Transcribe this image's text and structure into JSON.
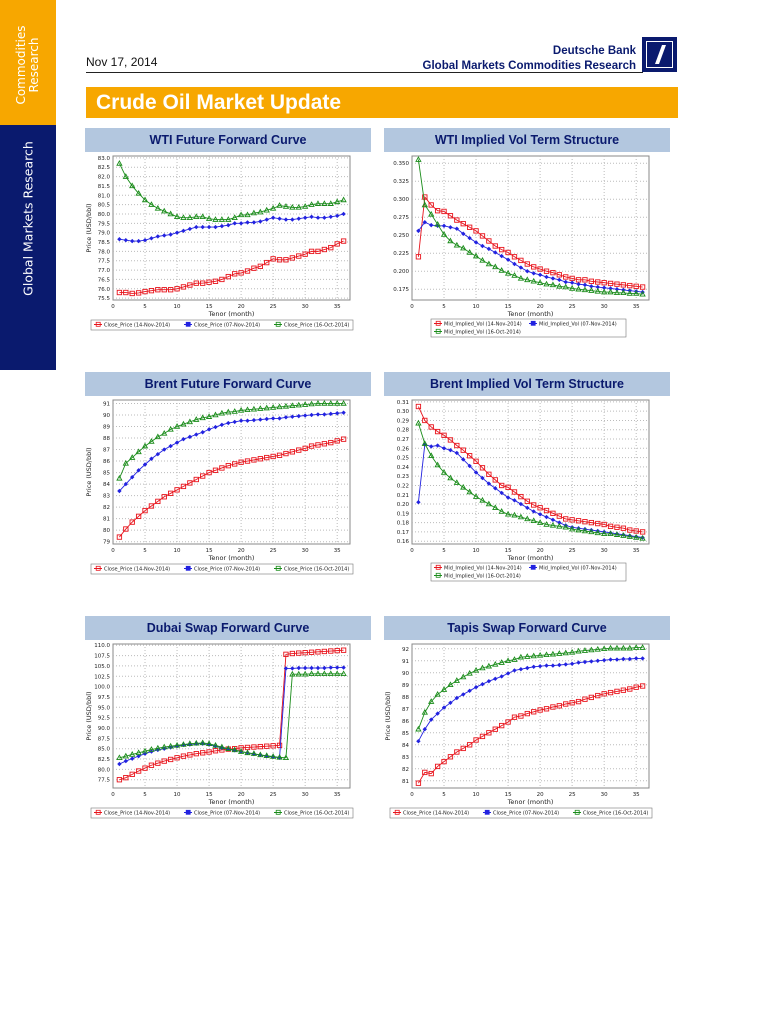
{
  "sidebar": {
    "top_label_1": "Commodities",
    "top_label_2": "Research",
    "bottom_label": "Global Markets Research"
  },
  "header": {
    "date": "Nov 17, 2014",
    "brand_line1": "Deutsche Bank",
    "brand_line2": "Global Markets Commodities Research",
    "logo": "deutsche-bank-slash-logo"
  },
  "page_title": "Crude Oil Market Update",
  "colors": {
    "orange": "#f7a700",
    "navy": "#0a1a6e",
    "title_bg": "#b3c7df",
    "red": "#e8141c",
    "blue": "#2222e0",
    "green": "#1a8c1a"
  },
  "chart_data": [
    {
      "title": "WTI Future Forward Curve",
      "type": "line",
      "xlabel": "Tenor (month)",
      "ylabel": "Price (USD/bbl)",
      "xlim": [
        0,
        37
      ],
      "ylim": [
        75.4,
        83.1
      ],
      "xticks": [
        0,
        5,
        10,
        15,
        20,
        25,
        30,
        35
      ],
      "yticks": [
        75.5,
        76.0,
        76.5,
        77.0,
        77.5,
        78.0,
        78.5,
        79.0,
        79.5,
        80.0,
        80.5,
        81.0,
        81.5,
        82.0,
        82.5,
        83.0
      ],
      "ydec": 1,
      "grid": true,
      "legend_placement": "bottom",
      "series": [
        {
          "name": "Close_Price (14-Nov-2014)",
          "color": "#e8141c",
          "marker": "square",
          "values": [
            75.8,
            75.8,
            75.75,
            75.78,
            75.85,
            75.9,
            75.95,
            75.95,
            75.95,
            76.0,
            76.1,
            76.2,
            76.3,
            76.3,
            76.35,
            76.4,
            76.5,
            76.65,
            76.8,
            76.85,
            76.95,
            77.1,
            77.2,
            77.4,
            77.6,
            77.55,
            77.55,
            77.65,
            77.75,
            77.85,
            78.0,
            78.0,
            78.1,
            78.2,
            78.4,
            78.55
          ]
        },
        {
          "name": "Close_Price (07-Nov-2014)",
          "color": "#2222e0",
          "marker": "diamond",
          "values": [
            78.65,
            78.6,
            78.55,
            78.55,
            78.6,
            78.7,
            78.8,
            78.85,
            78.9,
            79.0,
            79.1,
            79.2,
            79.3,
            79.3,
            79.3,
            79.3,
            79.35,
            79.4,
            79.5,
            79.5,
            79.55,
            79.55,
            79.6,
            79.7,
            79.8,
            79.75,
            79.7,
            79.7,
            79.75,
            79.8,
            79.85,
            79.8,
            79.8,
            79.85,
            79.9,
            80.0
          ]
        },
        {
          "name": "Close_Price (16-Oct-2014)",
          "color": "#1a8c1a",
          "marker": "triangle",
          "values": [
            82.7,
            82.0,
            81.5,
            81.1,
            80.75,
            80.5,
            80.3,
            80.15,
            80.0,
            79.85,
            79.8,
            79.8,
            79.85,
            79.85,
            79.75,
            79.7,
            79.7,
            79.7,
            79.8,
            79.95,
            79.95,
            80.05,
            80.1,
            80.2,
            80.3,
            80.45,
            80.4,
            80.35,
            80.35,
            80.4,
            80.5,
            80.55,
            80.55,
            80.55,
            80.65,
            80.75
          ]
        }
      ]
    },
    {
      "title": "WTI Implied Vol Term Structure",
      "type": "line",
      "xlabel": "Tenor (month)",
      "ylabel": "",
      "xlim": [
        0,
        37
      ],
      "ylim": [
        0.16,
        0.36
      ],
      "xticks": [
        0,
        5,
        10,
        15,
        20,
        25,
        30,
        35
      ],
      "yticks": [
        0.175,
        0.2,
        0.225,
        0.25,
        0.275,
        0.3,
        0.325,
        0.35
      ],
      "ydec": 3,
      "grid": true,
      "legend_placement": "bottom",
      "series": [
        {
          "name": "Mid_Implied_Vol (14-Nov-2014)",
          "color": "#e8141c",
          "marker": "square",
          "values": [
            0.22,
            0.303,
            0.292,
            0.284,
            0.283,
            0.277,
            0.271,
            0.266,
            0.261,
            0.256,
            0.249,
            0.242,
            0.235,
            0.23,
            0.226,
            0.22,
            0.215,
            0.21,
            0.206,
            0.203,
            0.2,
            0.198,
            0.195,
            0.192,
            0.19,
            0.188,
            0.188,
            0.186,
            0.185,
            0.184,
            0.183,
            0.182,
            0.181,
            0.18,
            0.179,
            0.178
          ]
        },
        {
          "name": "Mid_Implied_Vol (07-Nov-2014)",
          "color": "#2222e0",
          "marker": "diamond",
          "values": [
            0.256,
            0.268,
            0.264,
            0.263,
            0.263,
            0.261,
            0.259,
            0.252,
            0.246,
            0.24,
            0.235,
            0.231,
            0.226,
            0.221,
            0.216,
            0.21,
            0.205,
            0.2,
            0.197,
            0.195,
            0.192,
            0.19,
            0.188,
            0.185,
            0.184,
            0.182,
            0.181,
            0.179,
            0.178,
            0.177,
            0.176,
            0.175,
            0.174,
            0.173,
            0.172,
            0.171
          ]
        },
        {
          "name": "Mid_Implied_Vol (16-Oct-2014)",
          "color": "#1a8c1a",
          "marker": "triangle",
          "values": [
            0.355,
            0.292,
            0.279,
            0.265,
            0.251,
            0.242,
            0.236,
            0.232,
            0.226,
            0.221,
            0.215,
            0.21,
            0.206,
            0.201,
            0.197,
            0.194,
            0.19,
            0.188,
            0.186,
            0.184,
            0.182,
            0.181,
            0.179,
            0.178,
            0.176,
            0.175,
            0.174,
            0.173,
            0.172,
            0.171,
            0.171,
            0.17,
            0.17,
            0.169,
            0.169,
            0.168
          ]
        }
      ]
    },
    {
      "title": "Brent Future Forward Curve",
      "type": "line",
      "xlabel": "Tenor (month)",
      "ylabel": "Price (USD/bbl)",
      "xlim": [
        0,
        37
      ],
      "ylim": [
        78.8,
        91.3
      ],
      "xticks": [
        0,
        5,
        10,
        15,
        20,
        25,
        30,
        35
      ],
      "yticks": [
        79,
        80,
        81,
        82,
        83,
        84,
        85,
        86,
        87,
        88,
        89,
        90,
        91
      ],
      "ydec": 0,
      "grid": true,
      "legend_placement": "bottom",
      "series": [
        {
          "name": "Close_Price (14-Nov-2014)",
          "color": "#e8141c",
          "marker": "square",
          "values": [
            79.4,
            80.1,
            80.7,
            81.2,
            81.7,
            82.1,
            82.5,
            82.9,
            83.2,
            83.5,
            83.8,
            84.1,
            84.4,
            84.7,
            85.0,
            85.2,
            85.4,
            85.6,
            85.75,
            85.9,
            86.0,
            86.1,
            86.2,
            86.3,
            86.4,
            86.5,
            86.65,
            86.8,
            86.95,
            87.1,
            87.3,
            87.4,
            87.5,
            87.6,
            87.75,
            87.9
          ]
        },
        {
          "name": "Close_Price (07-Nov-2014)",
          "color": "#2222e0",
          "marker": "diamond",
          "values": [
            83.4,
            84.0,
            84.6,
            85.2,
            85.7,
            86.2,
            86.6,
            87.0,
            87.3,
            87.6,
            87.9,
            88.1,
            88.3,
            88.5,
            88.75,
            88.95,
            89.15,
            89.3,
            89.4,
            89.5,
            89.5,
            89.55,
            89.6,
            89.65,
            89.7,
            89.7,
            89.8,
            89.85,
            89.9,
            89.95,
            90.0,
            90.05,
            90.05,
            90.1,
            90.15,
            90.2
          ]
        },
        {
          "name": "Close_Price (16-Oct-2014)",
          "color": "#1a8c1a",
          "marker": "triangle",
          "values": [
            84.5,
            85.8,
            86.3,
            86.8,
            87.3,
            87.7,
            88.1,
            88.4,
            88.75,
            89.0,
            89.2,
            89.4,
            89.6,
            89.75,
            89.85,
            90.0,
            90.15,
            90.25,
            90.3,
            90.4,
            90.45,
            90.5,
            90.55,
            90.6,
            90.65,
            90.7,
            90.75,
            90.8,
            90.85,
            90.9,
            90.95,
            91.0,
            91.0,
            91.0,
            91.0,
            91.0
          ]
        }
      ]
    },
    {
      "title": "Brent Implied Vol Term Structure",
      "type": "line",
      "xlabel": "Tenor (month)",
      "ylabel": "",
      "xlim": [
        0,
        37
      ],
      "ylim": [
        0.157,
        0.312
      ],
      "xticks": [
        0,
        5,
        10,
        15,
        20,
        25,
        30,
        35
      ],
      "yticks": [
        0.16,
        0.17,
        0.18,
        0.19,
        0.2,
        0.21,
        0.22,
        0.23,
        0.24,
        0.25,
        0.26,
        0.27,
        0.28,
        0.29,
        0.3,
        0.31
      ],
      "ydec": 2,
      "grid": true,
      "legend_placement": "bottom",
      "series": [
        {
          "name": "Mid_Implied_Vol (14-Nov-2014)",
          "color": "#e8141c",
          "marker": "square",
          "values": [
            0.305,
            0.29,
            0.283,
            0.278,
            0.274,
            0.269,
            0.263,
            0.258,
            0.252,
            0.246,
            0.239,
            0.232,
            0.226,
            0.22,
            0.218,
            0.213,
            0.208,
            0.203,
            0.199,
            0.196,
            0.193,
            0.19,
            0.187,
            0.184,
            0.183,
            0.182,
            0.181,
            0.18,
            0.179,
            0.178,
            0.176,
            0.175,
            0.174,
            0.172,
            0.171,
            0.17
          ]
        },
        {
          "name": "Mid_Implied_Vol (07-Nov-2014)",
          "color": "#2222e0",
          "marker": "diamond",
          "values": [
            0.202,
            0.264,
            0.262,
            0.263,
            0.26,
            0.258,
            0.255,
            0.248,
            0.241,
            0.234,
            0.228,
            0.222,
            0.217,
            0.212,
            0.207,
            0.204,
            0.2,
            0.196,
            0.192,
            0.189,
            0.186,
            0.183,
            0.18,
            0.177,
            0.175,
            0.174,
            0.173,
            0.172,
            0.171,
            0.17,
            0.169,
            0.168,
            0.167,
            0.166,
            0.165,
            0.164
          ]
        },
        {
          "name": "Mid_Implied_Vol (16-Oct-2014)",
          "color": "#1a8c1a",
          "marker": "triangle",
          "values": [
            0.287,
            0.265,
            0.252,
            0.242,
            0.234,
            0.228,
            0.223,
            0.218,
            0.213,
            0.208,
            0.204,
            0.2,
            0.196,
            0.192,
            0.189,
            0.188,
            0.186,
            0.184,
            0.182,
            0.18,
            0.178,
            0.177,
            0.176,
            0.175,
            0.173,
            0.172,
            0.171,
            0.17,
            0.169,
            0.168,
            0.168,
            0.167,
            0.166,
            0.165,
            0.164,
            0.163
          ]
        }
      ]
    },
    {
      "title": "Dubai Swap Forward Curve",
      "type": "line",
      "xlabel": "Tenor (month)",
      "ylabel": "Price (USD/bbl)",
      "xlim": [
        0,
        37
      ],
      "ylim": [
        75.5,
        110.3
      ],
      "xticks": [
        0,
        5,
        10,
        15,
        20,
        25,
        30,
        35
      ],
      "yticks": [
        77.5,
        80,
        82.5,
        85,
        87.5,
        90,
        92.5,
        95,
        97.5,
        100,
        102.5,
        105,
        107.5,
        110
      ],
      "ydec": 1,
      "grid": true,
      "legend_placement": "bottom",
      "series": [
        {
          "name": "Close_Price (14-Nov-2014)",
          "color": "#e8141c",
          "marker": "square",
          "values": [
            77.5,
            78.0,
            78.8,
            79.6,
            80.3,
            81.0,
            81.5,
            82.0,
            82.4,
            82.8,
            83.2,
            83.5,
            83.8,
            84.0,
            84.2,
            84.5,
            84.7,
            84.9,
            85.0,
            85.2,
            85.3,
            85.4,
            85.5,
            85.6,
            85.7,
            85.8,
            107.8,
            108.0,
            108.1,
            108.2,
            108.3,
            108.4,
            108.5,
            108.6,
            108.7,
            108.8
          ]
        },
        {
          "name": "Close_Price (07-Nov-2014)",
          "color": "#2222e0",
          "marker": "diamond",
          "values": [
            81.3,
            82.0,
            82.6,
            83.2,
            83.8,
            84.3,
            84.7,
            85.0,
            85.3,
            85.6,
            85.9,
            86.0,
            86.2,
            86.2,
            86.0,
            85.6,
            85.2,
            84.9,
            84.6,
            84.3,
            84.0,
            83.7,
            83.5,
            83.2,
            83.0,
            82.8,
            104.4,
            104.4,
            104.5,
            104.5,
            104.5,
            104.5,
            104.5,
            104.6,
            104.6,
            104.6
          ]
        },
        {
          "name": "Close_Price (16-Oct-2014)",
          "color": "#1a8c1a",
          "marker": "triangle",
          "values": [
            82.8,
            83.2,
            83.6,
            84.0,
            84.4,
            84.8,
            85.1,
            85.4,
            85.6,
            85.8,
            86.0,
            86.2,
            86.3,
            86.4,
            86.2,
            85.8,
            85.4,
            85.0,
            84.7,
            84.3,
            84.0,
            83.8,
            83.5,
            83.3,
            83.1,
            82.9,
            82.8,
            103.0,
            103.0,
            103.0,
            103.1,
            103.1,
            103.1,
            103.1,
            103.1,
            103.1
          ]
        }
      ]
    },
    {
      "title": "Tapis Swap Forward Curve",
      "type": "line",
      "xlabel": "Tenor (month)",
      "ylabel": "Price (USD/bbl)",
      "xlim": [
        0,
        37
      ],
      "ylim": [
        80.4,
        92.4
      ],
      "xticks": [
        0,
        5,
        10,
        15,
        20,
        25,
        30,
        35
      ],
      "yticks": [
        81,
        82,
        83,
        84,
        85,
        86,
        87,
        88,
        89,
        90,
        91,
        92
      ],
      "ydec": 0,
      "grid": true,
      "legend_placement": "bottom",
      "series": [
        {
          "name": "Close_Price (14-Nov-2014)",
          "color": "#e8141c",
          "marker": "square",
          "values": [
            80.8,
            81.7,
            81.6,
            82.2,
            82.6,
            83.0,
            83.4,
            83.7,
            84.0,
            84.4,
            84.7,
            85.0,
            85.3,
            85.6,
            85.9,
            86.3,
            86.4,
            86.6,
            86.75,
            86.9,
            87.0,
            87.15,
            87.25,
            87.4,
            87.5,
            87.6,
            87.8,
            87.95,
            88.1,
            88.25,
            88.35,
            88.45,
            88.55,
            88.65,
            88.8,
            88.9
          ]
        },
        {
          "name": "Close_Price (07-Nov-2014)",
          "color": "#2222e0",
          "marker": "diamond",
          "values": [
            84.3,
            85.3,
            86.1,
            86.6,
            87.1,
            87.5,
            87.9,
            88.2,
            88.5,
            88.8,
            89.05,
            89.3,
            89.5,
            89.7,
            89.95,
            90.2,
            90.3,
            90.4,
            90.5,
            90.55,
            90.6,
            90.6,
            90.65,
            90.7,
            90.75,
            90.85,
            90.9,
            90.95,
            91.0,
            91.05,
            91.1,
            91.1,
            91.15,
            91.15,
            91.2,
            91.2
          ]
        },
        {
          "name": "Close_Price (16-Oct-2014)",
          "color": "#1a8c1a",
          "marker": "triangle",
          "values": [
            85.3,
            86.7,
            87.6,
            88.2,
            88.6,
            89.0,
            89.35,
            89.65,
            89.95,
            90.2,
            90.4,
            90.55,
            90.7,
            90.85,
            91.0,
            91.1,
            91.3,
            91.35,
            91.4,
            91.45,
            91.5,
            91.55,
            91.6,
            91.65,
            91.7,
            91.8,
            91.85,
            91.9,
            91.95,
            92.0,
            92.05,
            92.05,
            92.05,
            92.05,
            92.1,
            92.1
          ]
        }
      ]
    }
  ]
}
